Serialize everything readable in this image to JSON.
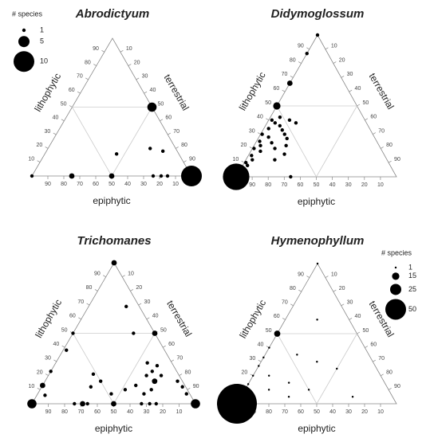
{
  "chart_data": [
    {
      "type": "ternary",
      "title": "Abrodictyum",
      "lim": [
        0,
        100
      ],
      "grid": [
        50
      ],
      "color": "#000000",
      "left_axis": {
        "label": "lithophytic",
        "ticks": [
          10,
          20,
          30,
          40,
          50,
          60,
          70,
          80,
          90
        ]
      },
      "right_axis": {
        "label": "terrestrial",
        "ticks": [
          10,
          20,
          30,
          40,
          50,
          60,
          70,
          80,
          90
        ]
      },
      "bottom_axis": {
        "label": "epiphytic",
        "ticks": [
          10,
          20,
          30,
          40,
          50,
          60,
          70,
          80,
          90
        ]
      },
      "size_legend": {
        "title": "# species",
        "values": [
          1,
          5,
          10
        ]
      },
      "lithophytic": [
        0,
        0,
        0,
        50,
        0,
        16,
        20,
        18,
        0,
        0,
        0
      ],
      "terrestrial": [
        0,
        25,
        50,
        50,
        100,
        45,
        64,
        73,
        76,
        81,
        85
      ],
      "epiphytic": [
        100,
        75,
        50,
        0,
        0,
        39,
        16,
        9,
        24,
        19,
        15
      ],
      "species": [
        1,
        2,
        2,
        4,
        10,
        1,
        1,
        1,
        1,
        1,
        1
      ]
    },
    {
      "type": "ternary",
      "title": "Didymoglossum",
      "lim": [
        0,
        100
      ],
      "grid": [
        50
      ],
      "color": "#000000",
      "left_axis": {
        "label": "lithophytic",
        "ticks": [
          10,
          20,
          30,
          40,
          50,
          60,
          70,
          80,
          90
        ]
      },
      "right_axis": {
        "label": "terrestrial",
        "ticks": [
          10,
          20,
          30,
          40,
          50,
          60,
          70,
          80,
          90
        ]
      },
      "bottom_axis": {
        "label": "epiphytic",
        "ticks": [
          10,
          20,
          30,
          40,
          50,
          60,
          70,
          80,
          90
        ]
      },
      "lithophytic": [
        100,
        87,
        66,
        50,
        40,
        38,
        34,
        30,
        28,
        25,
        22,
        20,
        18,
        15,
        12,
        10,
        8,
        5,
        40,
        38,
        33,
        30,
        27,
        24,
        22,
        20,
        16,
        12,
        42,
        36,
        0,
        0
      ],
      "terrestrial": [
        0,
        0,
        0,
        0,
        2,
        5,
        3,
        1,
        6,
        2,
        4,
        1,
        6,
        2,
        4,
        1,
        3,
        2,
        13,
        18,
        12,
        15,
        18,
        10,
        20,
        14,
        22,
        18,
        6,
        9,
        34,
        0
      ],
      "epiphytic": [
        0,
        13,
        34,
        50,
        58,
        57,
        63,
        69,
        66,
        73,
        74,
        79,
        76,
        83,
        84,
        89,
        89,
        93,
        47,
        44,
        55,
        55,
        55,
        66,
        58,
        66,
        62,
        70,
        52,
        55,
        66,
        100
      ],
      "species": [
        1,
        1,
        2,
        3,
        1,
        1,
        1,
        1,
        1,
        1,
        1,
        1,
        1,
        1,
        1,
        1,
        1,
        1,
        1,
        1,
        1,
        1,
        1,
        1,
        1,
        1,
        1,
        1,
        1,
        1,
        1,
        13
      ]
    },
    {
      "type": "ternary",
      "title": "Trichomanes",
      "lim": [
        0,
        100
      ],
      "grid": [
        50
      ],
      "color": "#000000",
      "left_axis": {
        "label": "lithophytic",
        "ticks": [
          10,
          20,
          30,
          40,
          50,
          60,
          70,
          80,
          90
        ]
      },
      "right_axis": {
        "label": "terrestrial",
        "ticks": [
          10,
          20,
          30,
          40,
          50,
          60,
          70,
          80,
          90
        ]
      },
      "bottom_axis": {
        "label": "epiphytic",
        "ticks": [
          10,
          20,
          30,
          40,
          50,
          60,
          70,
          80,
          90
        ]
      },
      "lithophytic": [
        100,
        69,
        50,
        38,
        21,
        16,
        12,
        7,
        10,
        13,
        7,
        10,
        20,
        29,
        27,
        23,
        20,
        16,
        50,
        16,
        12,
        7,
        23,
        13,
        6,
        50,
        0,
        0,
        0,
        0,
        0,
        0,
        0,
        0,
        0
      ],
      "terrestrial": [
        0,
        23,
        37,
        2,
        27,
        34,
        30,
        45,
        52,
        57,
        65,
        68,
        60,
        56,
        63,
        62,
        69,
        67,
        50,
        81,
        86,
        91,
        0,
        0,
        5,
        0,
        0,
        26,
        31,
        34,
        50,
        67,
        72,
        76,
        100
      ],
      "epiphytic": [
        0,
        8,
        13,
        60,
        52,
        50,
        58,
        48,
        38,
        30,
        28,
        22,
        20,
        15,
        10,
        15,
        11,
        17,
        0,
        3,
        2,
        2,
        77,
        87,
        89,
        50,
        100,
        74,
        69,
        66,
        50,
        33,
        28,
        24,
        0
      ],
      "species": [
        2,
        1,
        1,
        1,
        1,
        1,
        1,
        1,
        1,
        1,
        1,
        1,
        1,
        1,
        1,
        1,
        1,
        2,
        2,
        1,
        1,
        1,
        1,
        2,
        1,
        1,
        4,
        1,
        2,
        1,
        2,
        1,
        1,
        1,
        4
      ]
    },
    {
      "type": "ternary",
      "title": "Hymenophyllum",
      "lim": [
        0,
        100
      ],
      "grid": [
        50
      ],
      "color": "#000000",
      "left_axis": {
        "label": "lithophytic",
        "ticks": [
          10,
          20,
          30,
          40,
          50,
          60,
          70,
          80,
          90
        ]
      },
      "right_axis": {
        "label": "terrestrial",
        "ticks": [
          10,
          20,
          30,
          40,
          50,
          60,
          70,
          80,
          90
        ]
      },
      "bottom_axis": {
        "label": "epiphytic",
        "ticks": [
          10,
          20,
          30,
          40,
          50,
          60,
          70,
          80,
          90
        ]
      },
      "size_legend": {
        "title": "# species",
        "values": [
          1,
          15,
          25,
          50
        ]
      },
      "lithophytic": [
        100,
        50,
        40,
        33,
        27,
        20,
        14,
        0,
        60,
        35,
        30,
        20,
        15,
        10,
        25,
        5,
        10,
        5
      ],
      "terrestrial": [
        0,
        0,
        0,
        0,
        0,
        0,
        0,
        0,
        20,
        20,
        35,
        10,
        25,
        40,
        50,
        70,
        15,
        30
      ],
      "epiphytic": [
        0,
        50,
        60,
        67,
        73,
        80,
        86,
        100,
        20,
        45,
        35,
        70,
        60,
        50,
        25,
        25,
        75,
        65
      ],
      "species": [
        1,
        12,
        1,
        1,
        1,
        1,
        1,
        100,
        1,
        1,
        1,
        1,
        1,
        1,
        1,
        1,
        1,
        1
      ]
    }
  ]
}
